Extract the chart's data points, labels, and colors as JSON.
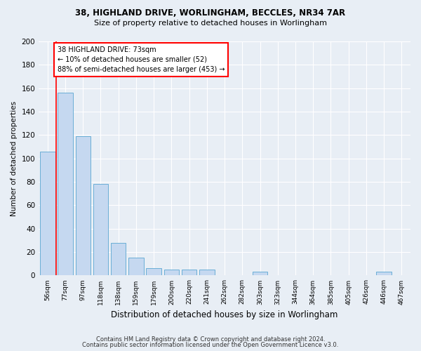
{
  "title1": "38, HIGHLAND DRIVE, WORLINGHAM, BECCLES, NR34 7AR",
  "title2": "Size of property relative to detached houses in Worlingham",
  "xlabel": "Distribution of detached houses by size in Worlingham",
  "ylabel": "Number of detached properties",
  "categories": [
    "56sqm",
    "77sqm",
    "97sqm",
    "118sqm",
    "138sqm",
    "159sqm",
    "179sqm",
    "200sqm",
    "220sqm",
    "241sqm",
    "262sqm",
    "282sqm",
    "303sqm",
    "323sqm",
    "344sqm",
    "364sqm",
    "385sqm",
    "405sqm",
    "426sqm",
    "446sqm",
    "467sqm"
  ],
  "values": [
    106,
    156,
    119,
    78,
    28,
    15,
    6,
    5,
    5,
    5,
    0,
    0,
    3,
    0,
    0,
    0,
    0,
    0,
    0,
    3,
    0
  ],
  "bar_color": "#c5d8f0",
  "bar_edge_color": "#6aaed6",
  "annotation_text": "38 HIGHLAND DRIVE: 73sqm\n← 10% of detached houses are smaller (52)\n88% of semi-detached houses are larger (453) →",
  "annotation_box_color": "white",
  "annotation_box_edge_color": "red",
  "ylim": [
    0,
    200
  ],
  "yticks": [
    0,
    20,
    40,
    60,
    80,
    100,
    120,
    140,
    160,
    180,
    200
  ],
  "footer1": "Contains HM Land Registry data © Crown copyright and database right 2024.",
  "footer2": "Contains public sector information licensed under the Open Government Licence v3.0.",
  "bg_color": "#e8eef5",
  "plot_bg_color": "#e8eef5",
  "grid_color": "#ffffff",
  "red_line_x": 0.5
}
